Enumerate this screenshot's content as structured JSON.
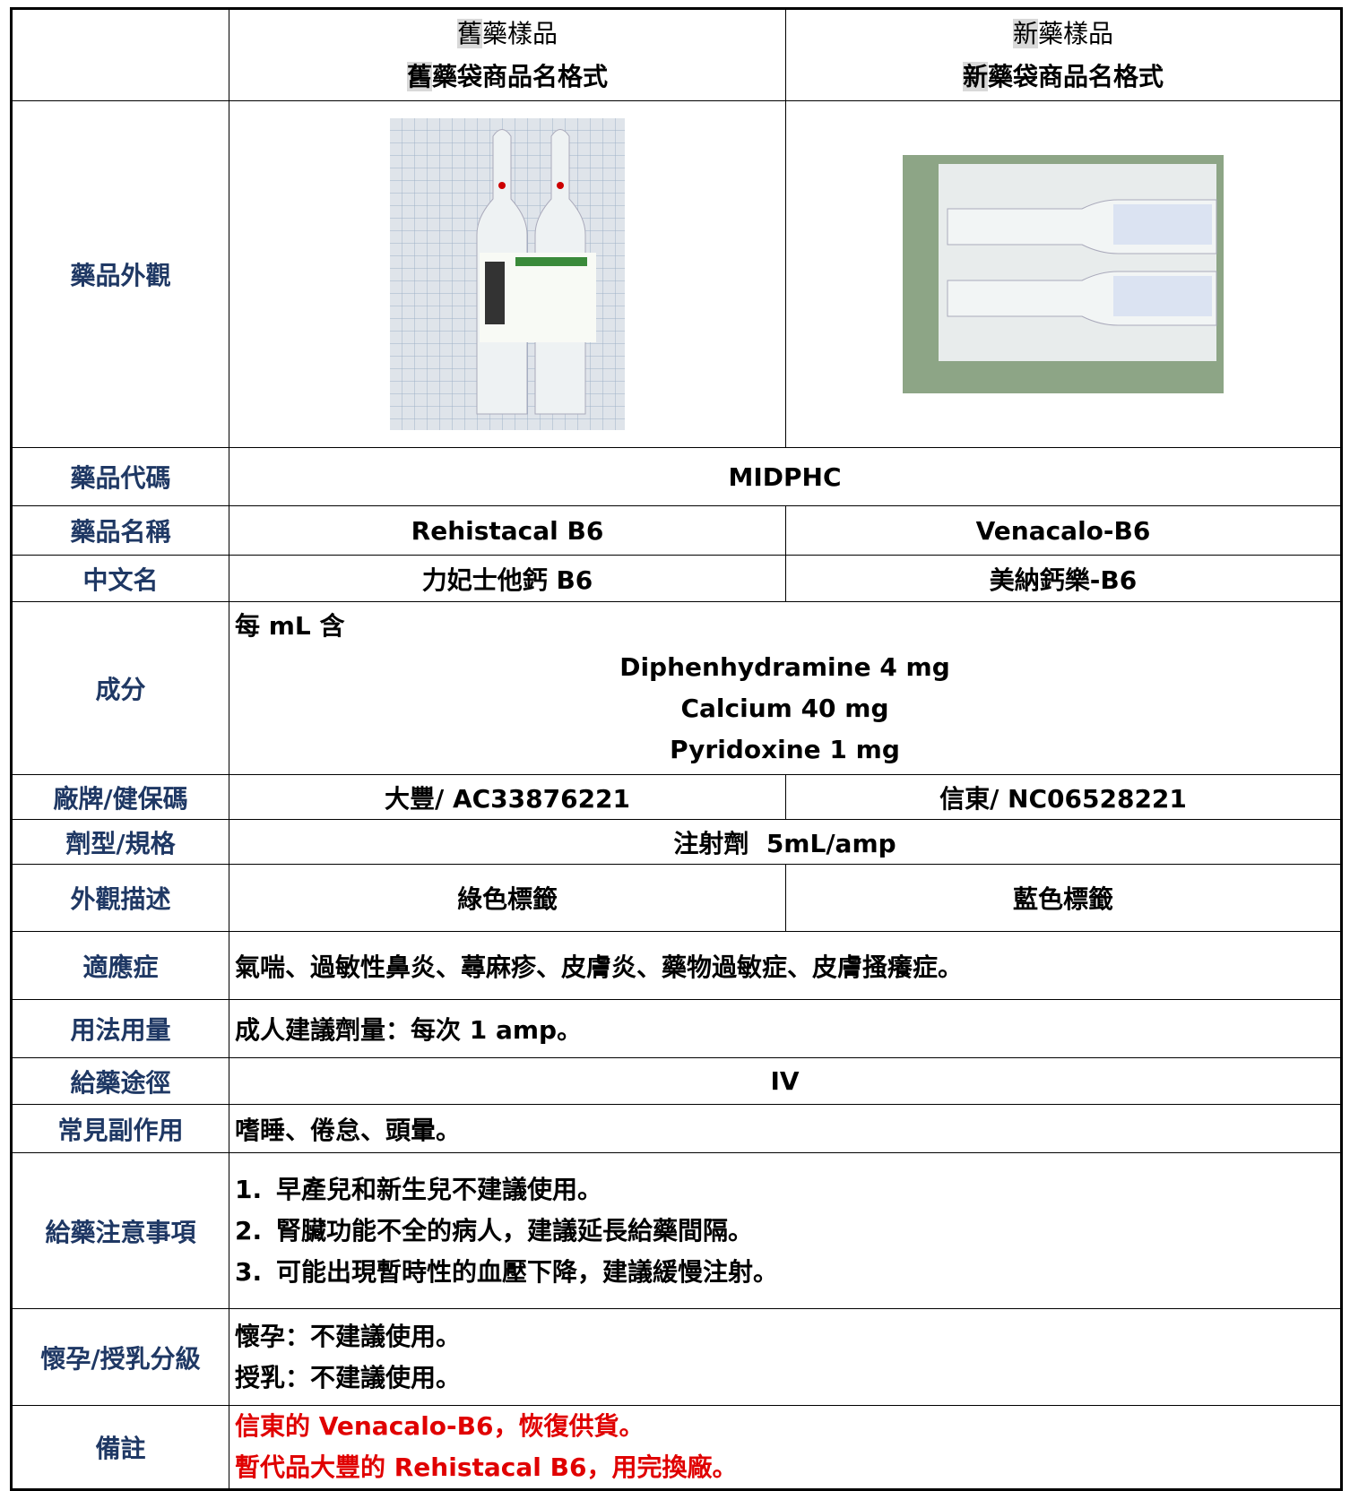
{
  "header": {
    "old": {
      "line1": [
        "舊",
        "藥樣品"
      ],
      "line2": [
        "舊",
        "藥袋商品名格式"
      ]
    },
    "new": {
      "line1": [
        "新",
        "藥樣品"
      ],
      "line2": [
        "新",
        "藥袋商品名格式"
      ]
    }
  },
  "rows": {
    "appearance": {
      "label": "藥品外觀"
    },
    "code": {
      "label": "藥品代碼",
      "value": "MIDPHC"
    },
    "name": {
      "label": "藥品名稱",
      "old": "Rehistacal B6",
      "new": "Venacalo-B6"
    },
    "chinese": {
      "label": "中文名",
      "old": "力妃士他鈣 B6",
      "new": "美納鈣樂-B6"
    },
    "ingredients": {
      "label": "成分",
      "intro": "每 mL 含",
      "items": [
        "Diphenhydramine 4 mg",
        "Calcium 40 mg",
        "Pyridoxine 1 mg"
      ]
    },
    "brand": {
      "label": "廠牌/健保碼",
      "old": "大豐/ AC33876221",
      "new": "信東/ NC06528221"
    },
    "form": {
      "label": "劑型/規格",
      "value": "注射劑  5mL/amp"
    },
    "description": {
      "label": "外觀描述",
      "old": "綠色標籤",
      "new": "藍色標籤"
    },
    "indications": {
      "label": "適應症",
      "value": "氣喘、過敏性鼻炎、蕁麻疹、皮膚炎、藥物過敏症、皮膚搔癢症。"
    },
    "dosage": {
      "label": "用法用量",
      "value": "成人建議劑量：每次 1 amp。"
    },
    "route": {
      "label": "給藥途徑",
      "value": "IV"
    },
    "side_effects": {
      "label": "常見副作用",
      "value": "嗜睡、倦怠、頭暈。"
    },
    "precautions": {
      "label": "給藥注意事項",
      "items": [
        {
          "number": "1.",
          "text": "早產兒和新生兒不建議使用。"
        },
        {
          "number": "2.",
          "text": "腎臟功能不全的病人，建議延長給藥間隔。"
        },
        {
          "number": "3.",
          "text": "可能出現暫時性的血壓下降，建議緩慢注射。"
        }
      ]
    },
    "pregnancy": {
      "label": "懷孕/授乳分級",
      "lines": [
        "懷孕：不建議使用。",
        "授乳：不建議使用。"
      ]
    },
    "notes": {
      "label": "備註",
      "lines": [
        "信東的 Venacalo-B6，恢復供貨。",
        "暫代品大豐的 Rehistacal B6，用完換廠。"
      ]
    }
  }
}
